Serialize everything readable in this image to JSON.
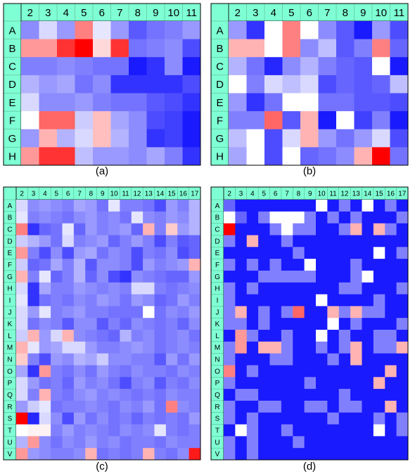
{
  "palette": {
    "blue": "#0000ff",
    "white": "#ffffff",
    "red": "#ff0000",
    "header": "#7fffd4"
  },
  "chart_data": [
    {
      "type": "heatmap",
      "caption": "(a)",
      "columns": [
        "2",
        "3",
        "4",
        "5",
        "6",
        "7",
        "8",
        "9",
        "10",
        "11"
      ],
      "rows": [
        "A",
        "B",
        "C",
        "D",
        "E",
        "F",
        "G",
        "H"
      ],
      "values": [
        [
          0.55,
          0.85,
          0.6,
          1.5,
          0.9,
          0.6,
          0.35,
          0.45,
          0.5,
          0.6
        ],
        [
          1.4,
          1.4,
          1.8,
          2.0,
          1.15,
          1.8,
          0.45,
          0.5,
          0.55,
          0.3
        ],
        [
          0.5,
          0.5,
          0.55,
          0.5,
          0.45,
          0.45,
          0.1,
          0.2,
          0.55,
          0.1
        ],
        [
          0.7,
          0.6,
          0.65,
          0.45,
          0.55,
          0.2,
          0.2,
          0.2,
          0.2,
          0.3
        ],
        [
          0.85,
          0.55,
          0.55,
          0.6,
          0.5,
          0.45,
          0.45,
          0.35,
          0.3,
          0.2
        ],
        [
          1.0,
          1.6,
          1.6,
          0.8,
          1.25,
          0.65,
          0.55,
          0.3,
          0.25,
          0.1
        ],
        [
          0.6,
          1.3,
          0.7,
          0.85,
          1.25,
          0.7,
          0.55,
          0.2,
          0.25,
          0.1
        ],
        [
          1.4,
          1.8,
          1.8,
          0.75,
          0.6,
          0.6,
          0.55,
          0.65,
          0.5,
          0.2
        ]
      ]
    },
    {
      "type": "heatmap",
      "caption": "(b)",
      "columns": [
        "2",
        "3",
        "4",
        "5",
        "6",
        "7",
        "8",
        "9",
        "10",
        "11"
      ],
      "rows": [
        "A",
        "B",
        "C",
        "D",
        "E",
        "F",
        "G",
        "H"
      ],
      "values": [
        [
          0.6,
          0.2,
          1.0,
          1.5,
          1.0,
          0.55,
          0.35,
          0.1,
          0.6,
          0.3
        ],
        [
          1.3,
          1.3,
          1.0,
          1.5,
          0.55,
          0.75,
          0.35,
          0.5,
          1.5,
          0.4
        ],
        [
          0.7,
          0.45,
          0.15,
          0.55,
          0.7,
          0.5,
          0.4,
          0.35,
          1.0,
          0.1
        ],
        [
          1.0,
          0.5,
          0.85,
          0.75,
          0.85,
          0.3,
          0.4,
          0.35,
          0.4,
          0.75
        ],
        [
          0.6,
          0.2,
          0.45,
          1.0,
          1.0,
          0.45,
          0.45,
          0.35,
          0.35,
          0.3
        ],
        [
          0.5,
          0.5,
          1.6,
          0.35,
          1.3,
          0.1,
          1.0,
          0.25,
          0.5,
          0.1
        ],
        [
          0.75,
          1.0,
          0.3,
          0.85,
          1.3,
          0.6,
          0.45,
          0.6,
          0.85,
          0.3
        ],
        [
          0.65,
          1.0,
          0.3,
          1.0,
          0.4,
          0.45,
          0.55,
          1.3,
          2.0,
          0.45
        ]
      ]
    },
    {
      "type": "heatmap",
      "caption": "(c)",
      "columns": [
        "2",
        "3",
        "4",
        "5",
        "6",
        "7",
        "8",
        "9",
        "10",
        "11",
        "12",
        "13",
        "14",
        "15",
        "16",
        "17"
      ],
      "rows": [
        "A",
        "B",
        "C",
        "D",
        "E",
        "F",
        "G",
        "H",
        "I",
        "J",
        "K",
        "L",
        "M",
        "N",
        "O",
        "P",
        "Q",
        "R",
        "S",
        "T",
        "U",
        "V"
      ],
      "values": [
        [
          0.85,
          0.55,
          0.6,
          0.55,
          0.5,
          0.65,
          0.6,
          0.45,
          0.9,
          0.5,
          0.5,
          0.45,
          0.3,
          0.6,
          0.5,
          0.7
        ],
        [
          0.9,
          0.5,
          0.55,
          0.5,
          0.45,
          0.55,
          0.6,
          0.5,
          0.55,
          0.45,
          0.9,
          0.55,
          0.5,
          0.6,
          0.55,
          0.7
        ],
        [
          1.5,
          0.2,
          0.4,
          0.45,
          0.9,
          0.4,
          0.6,
          0.5,
          0.55,
          0.6,
          0.4,
          1.3,
          0.5,
          1.2,
          0.6,
          0.7
        ],
        [
          0.8,
          0.7,
          0.6,
          0.45,
          0.85,
          0.5,
          0.55,
          0.6,
          0.4,
          0.5,
          0.6,
          0.5,
          0.3,
          0.5,
          0.35,
          0.4
        ],
        [
          1.4,
          0.5,
          0.3,
          0.55,
          0.3,
          0.6,
          0.65,
          0.45,
          0.55,
          0.5,
          0.3,
          0.5,
          0.45,
          0.55,
          0.3,
          0.4
        ],
        [
          0.8,
          0.4,
          0.45,
          0.65,
          0.5,
          0.7,
          0.35,
          0.55,
          0.55,
          0.5,
          0.3,
          0.6,
          0.5,
          0.55,
          0.6,
          1.3
        ],
        [
          1.3,
          0.5,
          0.9,
          0.4,
          0.5,
          0.7,
          0.4,
          0.55,
          0.3,
          0.2,
          0.55,
          0.5,
          0.45,
          0.4,
          0.4,
          0.6
        ],
        [
          0.85,
          0.2,
          0.65,
          0.5,
          0.5,
          0.6,
          0.55,
          0.5,
          0.55,
          0.5,
          0.85,
          0.85,
          0.5,
          0.45,
          0.5,
          0.55
        ],
        [
          0.9,
          0.2,
          0.45,
          0.5,
          0.45,
          0.55,
          0.5,
          0.6,
          0.55,
          0.45,
          0.6,
          0.55,
          0.4,
          0.45,
          0.6,
          0.5
        ],
        [
          0.85,
          0.6,
          0.9,
          0.5,
          0.55,
          0.6,
          0.5,
          0.5,
          0.45,
          0.45,
          0.45,
          1.0,
          0.45,
          0.55,
          0.5,
          0.6
        ],
        [
          0.85,
          0.45,
          0.55,
          0.5,
          0.35,
          0.55,
          0.55,
          0.35,
          0.5,
          0.4,
          0.55,
          0.5,
          0.45,
          0.5,
          0.4,
          0.55
        ],
        [
          0.8,
          1.3,
          0.6,
          0.85,
          1.3,
          0.55,
          0.5,
          0.45,
          0.4,
          0.7,
          0.5,
          0.55,
          0.45,
          0.5,
          0.55,
          0.45
        ],
        [
          1.3,
          0.9,
          0.6,
          0.65,
          0.85,
          0.85,
          0.6,
          0.5,
          0.5,
          0.55,
          0.6,
          0.55,
          0.45,
          0.5,
          0.55,
          0.5
        ],
        [
          1.2,
          0.5,
          0.3,
          0.6,
          0.55,
          0.7,
          0.65,
          0.8,
          0.55,
          0.55,
          0.5,
          0.5,
          0.35,
          0.6,
          0.45,
          0.6
        ],
        [
          0.65,
          0.2,
          1.4,
          0.5,
          0.45,
          0.55,
          0.45,
          0.6,
          0.5,
          0.45,
          0.55,
          0.5,
          0.5,
          0.45,
          0.55,
          0.5
        ],
        [
          0.85,
          0.6,
          0.45,
          0.5,
          0.4,
          0.6,
          0.5,
          0.55,
          0.45,
          0.3,
          0.5,
          0.55,
          0.35,
          0.5,
          0.45,
          0.55
        ],
        [
          0.85,
          0.5,
          1.3,
          0.5,
          0.45,
          0.55,
          0.6,
          0.5,
          0.55,
          0.5,
          0.45,
          0.5,
          0.45,
          0.55,
          0.5,
          0.5
        ],
        [
          0.6,
          0.8,
          0.9,
          0.45,
          0.5,
          0.5,
          0.55,
          0.5,
          0.45,
          0.55,
          0.5,
          0.6,
          0.45,
          1.5,
          0.55,
          0.5
        ],
        [
          2.0,
          0.15,
          0.85,
          0.55,
          0.3,
          0.6,
          0.45,
          0.55,
          0.45,
          0.5,
          0.4,
          0.5,
          0.45,
          0.5,
          0.45,
          0.6
        ],
        [
          1.0,
          1.05,
          1.05,
          0.5,
          0.6,
          0.5,
          0.55,
          0.5,
          0.45,
          0.55,
          0.5,
          0.55,
          0.9,
          0.5,
          0.45,
          0.5
        ],
        [
          0.7,
          1.4,
          0.55,
          0.45,
          0.55,
          0.5,
          0.6,
          0.5,
          0.55,
          0.45,
          0.5,
          0.5,
          0.45,
          0.55,
          0.5,
          0.5
        ],
        [
          1.4,
          0.6,
          0.55,
          0.5,
          0.5,
          0.55,
          1.3,
          0.45,
          0.5,
          0.45,
          0.5,
          1.3,
          0.5,
          0.45,
          0.55,
          1.9
        ]
      ]
    },
    {
      "type": "heatmap",
      "caption": "(d)",
      "columns": [
        "2",
        "3",
        "4",
        "5",
        "6",
        "7",
        "8",
        "9",
        "10",
        "11",
        "12",
        "13",
        "14",
        "15",
        "16",
        "17"
      ],
      "rows": [
        "A",
        "B",
        "C",
        "D",
        "E",
        "F",
        "G",
        "H",
        "I",
        "J",
        "K",
        "L",
        "M",
        "N",
        "O",
        "P",
        "Q",
        "R",
        "S",
        "T",
        "U",
        "V"
      ],
      "values": [
        [
          0.4,
          0.1,
          0.1,
          0.1,
          0.1,
          0.1,
          0.1,
          0.1,
          1.0,
          0.1,
          0.5,
          0.1,
          1.0,
          0.1,
          0.5,
          0.1
        ],
        [
          1.0,
          0.4,
          0.1,
          0.5,
          1.0,
          1.0,
          1.0,
          0.5,
          0.1,
          0.5,
          0.1,
          0.5,
          0.1,
          0.1,
          0.1,
          0.5
        ],
        [
          2.0,
          0.1,
          0.1,
          0.1,
          0.5,
          1.0,
          0.5,
          0.5,
          0.1,
          0.1,
          0.5,
          1.3,
          0.1,
          1.3,
          0.5,
          0.1
        ],
        [
          0.5,
          0.1,
          1.3,
          0.1,
          0.1,
          0.5,
          0.1,
          0.1,
          0.1,
          0.1,
          0.1,
          0.1,
          0.1,
          0.1,
          0.1,
          0.1
        ],
        [
          0.1,
          0.1,
          0.1,
          0.1,
          0.1,
          0.1,
          0.5,
          0.1,
          0.1,
          0.1,
          0.1,
          0.1,
          0.1,
          1.0,
          0.1,
          0.5
        ],
        [
          0.5,
          0.1,
          0.5,
          0.1,
          0.5,
          0.1,
          0.1,
          1.0,
          0.1,
          0.1,
          0.1,
          0.5,
          0.1,
          0.1,
          0.1,
          0.1
        ],
        [
          0.1,
          0.1,
          0.1,
          0.5,
          0.5,
          0.5,
          0.5,
          0.5,
          0.1,
          0.1,
          0.1,
          0.5,
          1.0,
          0.1,
          0.1,
          0.1
        ],
        [
          0.5,
          0.1,
          0.5,
          0.1,
          0.1,
          0.1,
          0.1,
          0.1,
          0.1,
          0.1,
          0.5,
          0.5,
          0.1,
          0.1,
          0.1,
          0.5
        ],
        [
          0.5,
          0.1,
          0.1,
          0.1,
          0.1,
          0.1,
          0.1,
          0.1,
          1.0,
          0.1,
          0.1,
          0.1,
          0.1,
          0.5,
          0.1,
          0.1
        ],
        [
          0.5,
          1.3,
          0.1,
          0.5,
          0.1,
          0.5,
          1.6,
          0.1,
          0.1,
          1.3,
          0.5,
          1.3,
          0.5,
          0.5,
          0.1,
          0.1
        ],
        [
          0.5,
          0.5,
          0.1,
          0.5,
          0.1,
          0.1,
          0.1,
          0.1,
          0.1,
          1.0,
          0.1,
          0.5,
          0.1,
          0.1,
          0.1,
          0.5
        ],
        [
          0.1,
          1.4,
          0.5,
          0.1,
          0.1,
          0.5,
          0.1,
          0.1,
          1.0,
          0.1,
          0.5,
          0.1,
          0.1,
          0.5,
          0.5,
          0.1
        ],
        [
          0.5,
          1.4,
          0.1,
          1.3,
          1.3,
          0.5,
          0.1,
          0.1,
          0.5,
          0.1,
          0.5,
          1.3,
          0.1,
          0.5,
          0.5,
          1.3
        ],
        [
          0.5,
          0.1,
          0.1,
          0.1,
          0.5,
          0.5,
          0.1,
          0.1,
          0.1,
          0.5,
          0.1,
          1.3,
          0.1,
          0.1,
          0.1,
          0.1
        ],
        [
          1.5,
          0.1,
          0.5,
          0.1,
          0.1,
          0.1,
          0.1,
          0.1,
          0.1,
          0.1,
          0.1,
          0.1,
          0.1,
          0.1,
          1.3,
          0.1
        ],
        [
          0.5,
          0.1,
          0.1,
          0.1,
          0.1,
          0.1,
          0.1,
          0.5,
          0.1,
          0.1,
          0.1,
          0.1,
          0.1,
          1.3,
          0.1,
          0.1
        ],
        [
          0.1,
          0.5,
          0.5,
          0.1,
          0.1,
          0.1,
          0.1,
          0.1,
          0.1,
          0.1,
          0.5,
          0.1,
          0.1,
          0.1,
          0.1,
          0.1
        ],
        [
          0.5,
          0.1,
          0.1,
          0.5,
          0.5,
          0.1,
          0.1,
          0.5,
          0.5,
          0.1,
          0.5,
          0.5,
          0.1,
          0.1,
          1.3,
          0.1
        ],
        [
          0.5,
          0.1,
          0.5,
          0.1,
          0.1,
          0.1,
          0.1,
          0.1,
          0.1,
          0.5,
          0.1,
          0.1,
          0.1,
          0.5,
          0.1,
          0.5
        ],
        [
          0.1,
          1.0,
          0.5,
          0.1,
          0.1,
          0.5,
          0.1,
          0.1,
          0.1,
          0.1,
          0.1,
          0.1,
          0.1,
          1.0,
          0.1,
          0.5
        ],
        [
          0.5,
          0.1,
          0.5,
          0.1,
          0.1,
          0.1,
          0.5,
          0.1,
          0.1,
          0.1,
          0.1,
          0.1,
          0.1,
          0.1,
          0.1,
          0.1
        ],
        [
          0.5,
          0.1,
          0.5,
          0.1,
          0.1,
          0.1,
          0.1,
          0.1,
          0.1,
          0.1,
          0.1,
          0.1,
          0.1,
          0.1,
          0.1,
          0.1
        ]
      ]
    }
  ]
}
